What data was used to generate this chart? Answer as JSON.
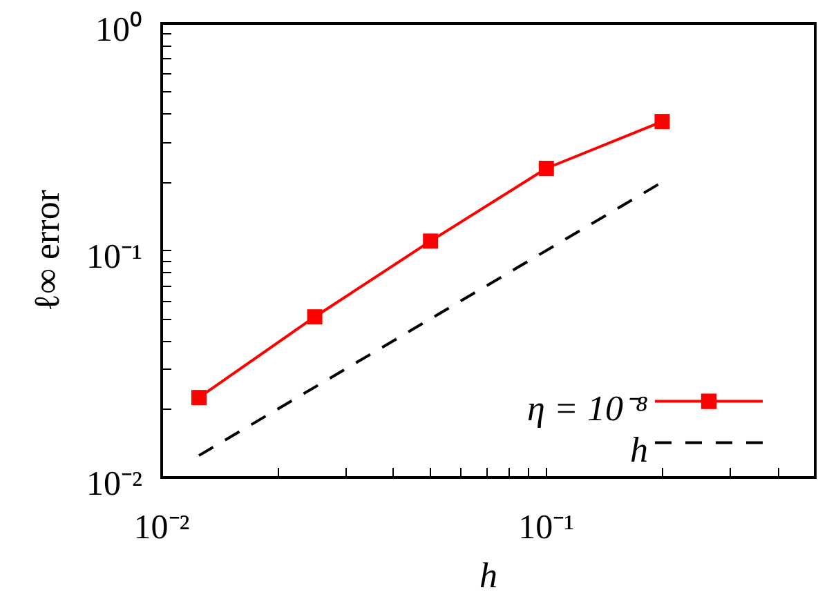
{
  "chart_data": {
    "type": "line",
    "xlabel": "h",
    "ylabel": "ℓ∞ error",
    "log": "xy",
    "grid": false,
    "legend": "bottom right",
    "xlim": [
      0.01,
      0.5
    ],
    "xticks": [
      {
        "value": 0.01,
        "label": "10⁻²"
      },
      {
        "value": 0.02,
        "label": null
      },
      {
        "value": 0.03,
        "label": null
      },
      {
        "value": 0.04,
        "label": null
      },
      {
        "value": 0.05,
        "label": null
      },
      {
        "value": 0.06,
        "label": null
      },
      {
        "value": 0.07,
        "label": null
      },
      {
        "value": 0.08,
        "label": null
      },
      {
        "value": 0.09,
        "label": null
      },
      {
        "value": 0.1,
        "label": "10⁻¹"
      },
      {
        "value": 0.2,
        "label": null
      },
      {
        "value": 0.3,
        "label": null
      },
      {
        "value": 0.4,
        "label": null
      },
      {
        "value": 0.5,
        "label": null
      }
    ],
    "ylim": [
      0.01,
      1
    ],
    "yticks": [
      {
        "value": 0.01,
        "label": "10⁻²"
      },
      {
        "value": 0.02,
        "label": null
      },
      {
        "value": 0.03,
        "label": null
      },
      {
        "value": 0.04,
        "label": null
      },
      {
        "value": 0.05,
        "label": null
      },
      {
        "value": 0.06,
        "label": null
      },
      {
        "value": 0.07,
        "label": null
      },
      {
        "value": 0.08,
        "label": null
      },
      {
        "value": 0.09,
        "label": null
      },
      {
        "value": 0.1,
        "label": "10⁻¹"
      },
      {
        "value": 0.2,
        "label": null
      },
      {
        "value": 0.3,
        "label": null
      },
      {
        "value": 0.4,
        "label": null
      },
      {
        "value": 0.5,
        "label": null
      },
      {
        "value": 0.6,
        "label": null
      },
      {
        "value": 0.7,
        "label": null
      },
      {
        "value": 0.8,
        "label": null
      },
      {
        "value": 0.9,
        "label": null
      },
      {
        "value": 1,
        "label": "10⁰"
      }
    ],
    "series": [
      {
        "name": "η = 10⁻⁸",
        "color": "#ff0000",
        "marker": "square",
        "line_style": "solid",
        "x": [
          0.0125,
          0.025,
          0.05,
          0.1,
          0.2
        ],
        "values": [
          0.0225,
          0.051,
          0.11,
          0.23,
          0.37
        ]
      },
      {
        "name": "h",
        "color": "#000000",
        "marker": "none",
        "line_style": "dashed",
        "x": [
          0.0125,
          0.2
        ],
        "values": [
          0.0125,
          0.2
        ]
      }
    ]
  }
}
